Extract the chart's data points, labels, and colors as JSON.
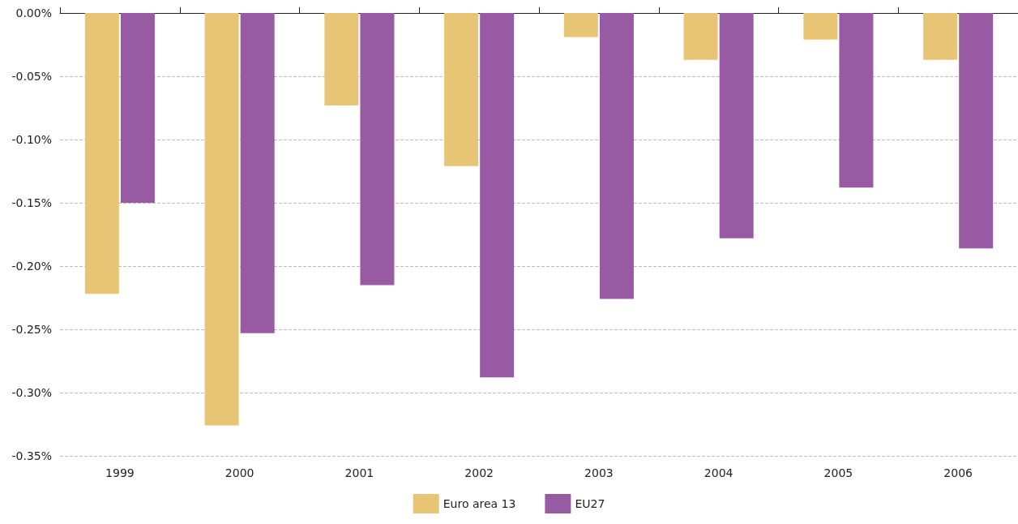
{
  "chart_data": {
    "type": "bar",
    "categories": [
      "1999",
      "2000",
      "2001",
      "2002",
      "2003",
      "2004",
      "2005",
      "2006"
    ],
    "series": [
      {
        "name": "Euro area 13",
        "color": "#e8c574",
        "values": [
          -0.222,
          -0.326,
          -0.073,
          -0.121,
          -0.019,
          -0.037,
          -0.021,
          -0.037
        ]
      },
      {
        "name": "EU27",
        "color": "#985ba3",
        "values": [
          -0.15,
          -0.253,
          -0.215,
          -0.288,
          -0.226,
          -0.178,
          -0.138,
          -0.186
        ]
      }
    ],
    "ylim": [
      -0.35,
      0
    ],
    "yticks": [
      {
        "value": -0.35,
        "label": "-0.35%"
      },
      {
        "value": -0.3,
        "label": "-0.30%"
      },
      {
        "value": -0.25,
        "label": "-0.25%"
      },
      {
        "value": -0.2,
        "label": "-0.20%"
      },
      {
        "value": -0.15,
        "label": "-0.15%"
      },
      {
        "value": -0.1,
        "label": "-0.10%"
      },
      {
        "value": -0.05,
        "label": "-0.05%"
      },
      {
        "value": 0,
        "label": "0.00%"
      }
    ],
    "grid": "y",
    "legend": "bottom"
  }
}
